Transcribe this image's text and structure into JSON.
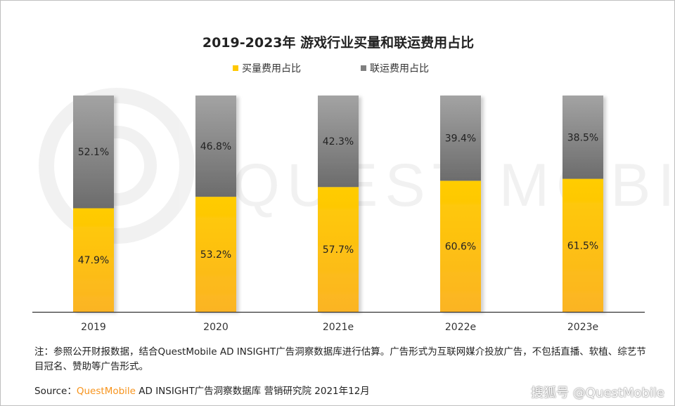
{
  "chart_data": {
    "type": "bar",
    "stacked": true,
    "title": "2019-2023年 游戏行业买量和联运费用占比",
    "categories": [
      "2019",
      "2020",
      "2021e",
      "2022e",
      "2023e"
    ],
    "series": [
      {
        "name": "买量费用占比",
        "values": [
          47.9,
          53.2,
          57.7,
          60.6,
          61.5
        ],
        "labels": [
          "47.9%",
          "53.2%",
          "57.7%",
          "60.6%",
          "61.5%"
        ],
        "color": "#FFC800"
      },
      {
        "name": "联运费用占比",
        "values": [
          52.1,
          46.8,
          42.3,
          39.4,
          38.5
        ],
        "labels": [
          "52.1%",
          "46.8%",
          "42.3%",
          "39.4%",
          "38.5%"
        ],
        "color": "#7F7F7F"
      }
    ],
    "ylim": [
      0,
      100
    ],
    "grid": false,
    "legend": "top"
  },
  "watermark": "QUEST MOBILE",
  "note": "注：参照公开财报数据，结合QuestMobile AD INSIGHT广告洞察数据库进行估算。广告形式为互联网媒介投放广告，不包括直播、软植、综艺节目冠名、赞助等广告形式。",
  "source": {
    "label": "Source：",
    "brand": "QuestMobile",
    "text": " AD INSIGHT广告洞察数据库 营销研究院 2021年12月"
  },
  "credit": "搜狐号 @QuestMobile"
}
